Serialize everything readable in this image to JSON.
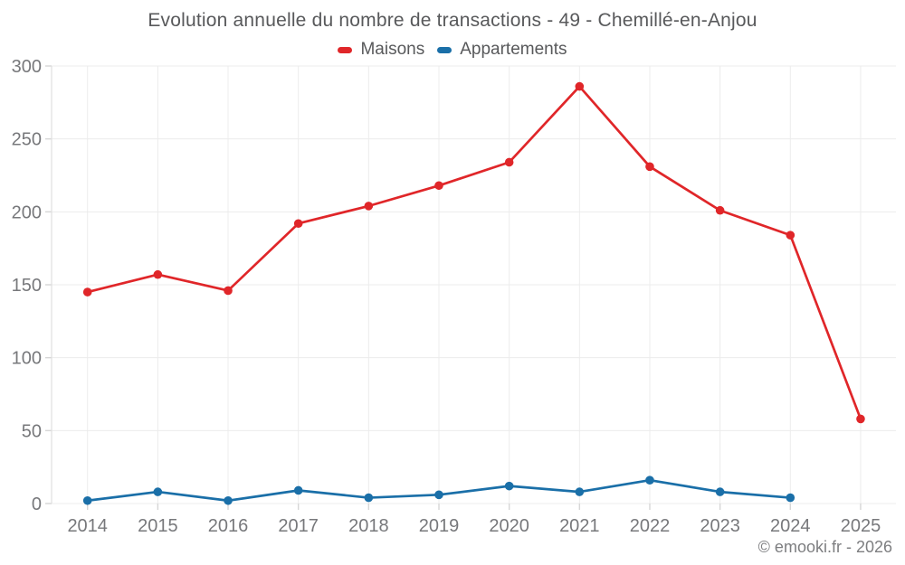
{
  "title": "Evolution annuelle du nombre de transactions - 49 - Chemillé-en-Anjou",
  "footer": "© emooki.fr - 2026",
  "legend": [
    {
      "label": "Maisons",
      "color": "#e02629"
    },
    {
      "label": "Appartements",
      "color": "#1a6fa8"
    }
  ],
  "colors": {
    "grid": "#ececec",
    "axis": "#e0e0e0",
    "tick": "#d6d6d6",
    "tick_label": "#77787b",
    "maisons": "#e02629",
    "appartements": "#1a6fa8"
  },
  "chart_data": {
    "type": "line",
    "title": "Evolution annuelle du nombre de transactions - 49 - Chemillé-en-Anjou",
    "categories": [
      "2014",
      "2015",
      "2016",
      "2017",
      "2018",
      "2019",
      "2020",
      "2021",
      "2022",
      "2023",
      "2024",
      "2025"
    ],
    "series": [
      {
        "name": "Maisons",
        "color": "#e02629",
        "values": [
          145,
          157,
          146,
          192,
          204,
          218,
          234,
          286,
          231,
          201,
          184,
          58
        ]
      },
      {
        "name": "Appartements",
        "color": "#1a6fa8",
        "values": [
          2,
          8,
          2,
          9,
          4,
          6,
          12,
          8,
          16,
          8,
          4,
          null
        ]
      }
    ],
    "xlabel": "",
    "ylabel": "",
    "ylim": [
      0,
      300
    ],
    "yticks": [
      0,
      50,
      100,
      150,
      200,
      250,
      300
    ],
    "grid": true,
    "legend_position": "top"
  }
}
